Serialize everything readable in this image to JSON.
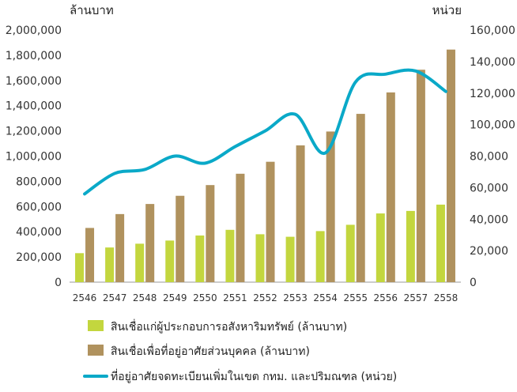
{
  "chart_data": {
    "type": "bar",
    "left_unit": "ล้านบาท",
    "right_unit": "หน่วย",
    "categories": [
      "2546",
      "2547",
      "2548",
      "2549",
      "2550",
      "2551",
      "2552",
      "2553",
      "2554",
      "2555",
      "2556",
      "2557",
      "2558"
    ],
    "left_axis": {
      "range": [
        0,
        2000000
      ],
      "ticks": [
        0,
        200000,
        400000,
        600000,
        800000,
        1000000,
        1200000,
        1400000,
        1600000,
        1800000,
        2000000
      ],
      "tick_labels": [
        "0",
        "200,000",
        "400,000",
        "600,000",
        "800,000",
        "1,000,000",
        "1,200,000",
        "1,400,000",
        "1,600,000",
        "1,800,000",
        "2,000,000"
      ]
    },
    "right_axis": {
      "range": [
        0,
        160000
      ],
      "ticks": [
        0,
        20000,
        40000,
        60000,
        80000,
        100000,
        120000,
        140000,
        160000
      ],
      "tick_labels": [
        "0",
        "20,000",
        "40,000",
        "60,000",
        "80,000",
        "100,000",
        "120,000",
        "140,000",
        "160,000"
      ]
    },
    "series": [
      {
        "name": "สินเชื่อแก่ผู้ประกอบการอสังหาริมทรัพย์ (ล้านบาท)",
        "type": "bar",
        "axis": "left",
        "color": "#c3d63e",
        "values": [
          230000,
          275000,
          305000,
          330000,
          370000,
          415000,
          380000,
          360000,
          405000,
          455000,
          545000,
          565000,
          615000
        ]
      },
      {
        "name": "สินเชื่อเพื่อที่อยู่อาศัยส่วนบุคคล (ล้านบาท)",
        "type": "bar",
        "axis": "left",
        "color": "#b0925e",
        "values": [
          430000,
          540000,
          620000,
          685000,
          770000,
          860000,
          955000,
          1085000,
          1195000,
          1335000,
          1505000,
          1685000,
          1845000
        ]
      },
      {
        "name": "ที่อยู่อาศัยจดทะเบียนเพิ่มในเขต กทม. และปริมณฑล (หน่วย)",
        "type": "line",
        "axis": "right",
        "color": "#0aa9c8",
        "values": [
          56000,
          69000,
          71500,
          80000,
          75500,
          86000,
          96000,
          106500,
          82000,
          127000,
          132000,
          134000,
          121000
        ]
      }
    ],
    "grid": false,
    "legend_position": "bottom"
  }
}
